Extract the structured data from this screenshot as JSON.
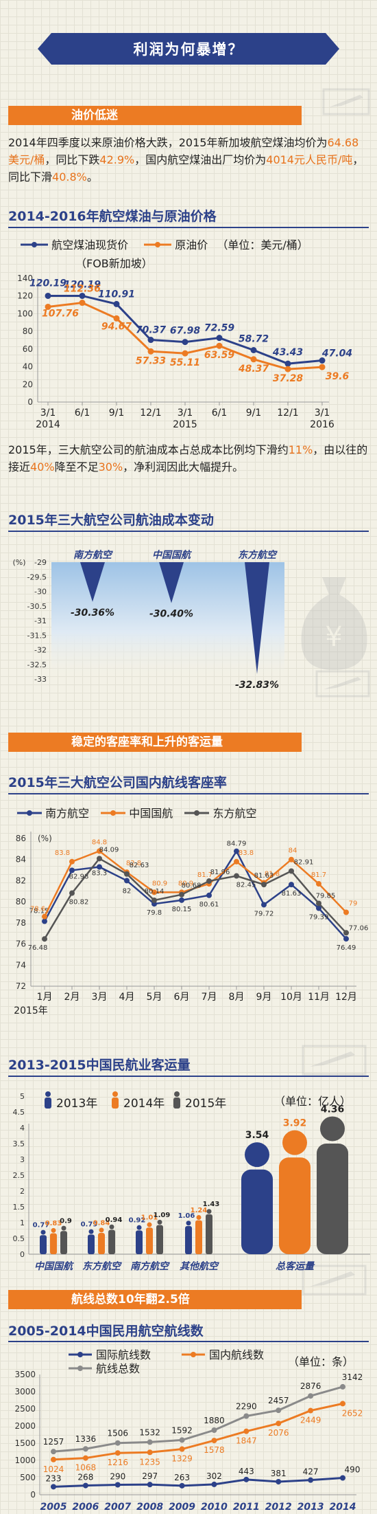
{
  "header": {
    "title": "利润为何暴增？"
  },
  "section1": {
    "tag": "油价低迷",
    "para1_parts": [
      "2014年四季度以来原油价格大跌，2015年新加坡航空煤油均价为",
      "64.68美元/桶",
      "，同比下跌",
      "42.9%",
      "，国内航空煤油出厂均价为",
      "4014元人民币/吨",
      "，同比下滑",
      "40.8%",
      "。"
    ],
    "para2_parts": [
      "2015年，三大航空公司的航油成本占总成本比例均下滑约",
      "11%",
      "，由以往的接近",
      "40%",
      "降至不足",
      "30%",
      "，净利润因此大幅提升。"
    ]
  },
  "colors": {
    "navy": "#2c4189",
    "orange": "#ec7b23",
    "gray": "#8a8a8a",
    "dark": "#555555"
  },
  "chart_data": [
    {
      "type": "line",
      "title": "2014-2016年航空煤油与原油价格",
      "legend": [
        "航空煤油现货价",
        "原油价"
      ],
      "legend_sub": "（FOB新加坡）",
      "unit": "（单位：美元/桶）",
      "x": [
        "3/1",
        "6/1",
        "9/1",
        "12/1",
        "3/1",
        "6/1",
        "9/1",
        "12/1",
        "3/1"
      ],
      "x_sub": [
        "2014",
        "",
        "",
        "",
        "2015",
        "",
        "",
        "",
        "2016"
      ],
      "ylim": [
        0,
        140
      ],
      "yticks": [
        0,
        20,
        40,
        60,
        80,
        100,
        120,
        140
      ],
      "series": [
        {
          "name": "航空煤油现货价",
          "values": [
            120.19,
            120.19,
            110.91,
            70.37,
            67.98,
            72.59,
            58.72,
            43.43,
            47.04
          ]
        },
        {
          "name": "原油价",
          "values": [
            107.76,
            112.36,
            94.67,
            57.33,
            55.11,
            63.59,
            48.37,
            37.28,
            39.6
          ]
        }
      ]
    },
    {
      "type": "bar",
      "title": "2015年三大航空公司航油成本变动",
      "ylabel": "(%)",
      "ylim": [
        -33,
        -29
      ],
      "yticks": [
        "-29",
        "-29.5",
        "-30",
        "-30.5",
        "-31",
        "-31.5",
        "-32",
        "-32.5",
        "-33"
      ],
      "categories": [
        "南方航空",
        "中国国航",
        "东方航空"
      ],
      "values": [
        -30.36,
        -30.4,
        -32.83
      ],
      "value_labels": [
        "-30.36%",
        "-30.40%",
        "-32.83%"
      ]
    },
    {
      "type": "line",
      "title": "2015年三大航空公司国内航线客座率",
      "ylabel": "(%)",
      "ylim": [
        72,
        86
      ],
      "yticks": [
        72,
        74,
        76,
        78,
        80,
        82,
        84,
        86
      ],
      "x": [
        "1月",
        "2月",
        "3月",
        "4月",
        "5月",
        "6月",
        "7月",
        "8月",
        "9月",
        "10月",
        "11月",
        "12月"
      ],
      "x_sub": "2015年",
      "series": [
        {
          "name": "南方航空",
          "values": [
            78.15,
            82.98,
            83.3,
            82,
            79.8,
            80.15,
            80.61,
            84.79,
            79.72,
            81.63,
            79.39,
            76.49
          ]
        },
        {
          "name": "中国国航",
          "values": [
            78.6,
            83.8,
            84.8,
            82.8,
            80.9,
            80.9,
            81.7,
            83.8,
            81.8,
            84,
            81.7,
            79
          ]
        },
        {
          "name": "东方航空",
          "values": [
            76.48,
            80.82,
            84.09,
            82.63,
            80.14,
            80.68,
            81.96,
            82.45,
            81.63,
            82.91,
            79.85,
            77.06
          ]
        }
      ]
    },
    {
      "type": "bar",
      "title": "2013-2015中国民航业客运量",
      "unit": "（单位：亿人）",
      "legend": [
        "2013年",
        "2014年",
        "2015年"
      ],
      "ylim": [
        0,
        5
      ],
      "yticks": [
        "0",
        "0.5",
        "1",
        "1.5",
        "2",
        "2.5",
        "3",
        "3.5",
        "4",
        "4.5",
        "5"
      ],
      "categories": [
        "中国国航",
        "东方航空",
        "南方航空",
        "其他航空",
        "总客运量"
      ],
      "series": [
        {
          "name": "2013年",
          "values": [
            0.77,
            0.79,
            0.92,
            1.06,
            3.54
          ]
        },
        {
          "name": "2014年",
          "values": [
            0.83,
            0.84,
            1.01,
            1.24,
            3.92
          ]
        },
        {
          "name": "2015年",
          "values": [
            0.9,
            0.94,
            1.09,
            1.43,
            4.36
          ]
        }
      ]
    },
    {
      "type": "line",
      "title": "2005-2014中国民用航空航线数",
      "unit": "（单位：条）",
      "legend": [
        "国际航线数",
        "国内航线数",
        "航线总数"
      ],
      "ylim": [
        0,
        3500
      ],
      "yticks": [
        0,
        500,
        1000,
        1500,
        2000,
        2500,
        3000,
        3500
      ],
      "x": [
        "2005",
        "2006",
        "2007",
        "2008",
        "2009",
        "2010",
        "2011",
        "2012",
        "2013",
        "2014"
      ],
      "series": [
        {
          "name": "国际航线数",
          "values": [
            233,
            268,
            290,
            297,
            263,
            302,
            443,
            381,
            427,
            490
          ]
        },
        {
          "name": "国内航线数",
          "values": [
            1024,
            1068,
            1216,
            1235,
            1329,
            1578,
            1847,
            2076,
            2449,
            2652
          ]
        },
        {
          "name": "航线总数",
          "values": [
            1257,
            1336,
            1506,
            1532,
            1592,
            1880,
            2290,
            2457,
            2876,
            3142
          ]
        }
      ]
    }
  ],
  "section2": {
    "tag": "稳定的客座率和上升的客运量"
  },
  "section3": {
    "tag": "航线总数10年翻2.5倍"
  }
}
